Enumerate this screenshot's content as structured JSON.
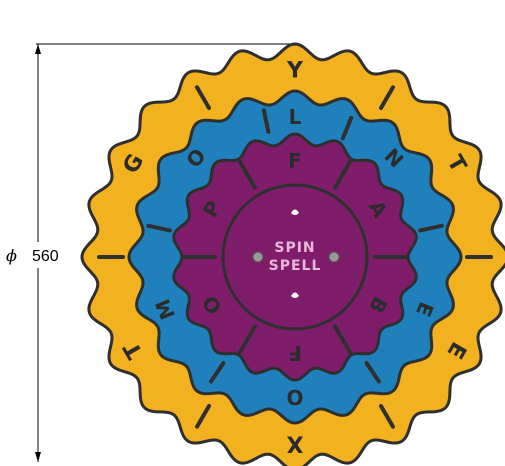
{
  "dimension": {
    "symbol": "ϕ",
    "value": "560"
  },
  "hub": {
    "line1": "SPIN",
    "line2": "SPELL"
  },
  "colors": {
    "outer": "#f2b11f",
    "middle": "#1f80bb",
    "inner": "#7f1d6b",
    "outline": "#2f2f2f",
    "hub_text": "#e9b8d8"
  },
  "rings": {
    "outer_letters": [
      {
        "char": "Y",
        "angle": 0
      },
      {
        "char": "T",
        "angle": 60
      },
      {
        "char": "E",
        "angle": 120
      },
      {
        "char": "X",
        "angle": 180
      },
      {
        "char": "T",
        "angle": 240
      },
      {
        "char": "G",
        "angle": 300
      }
    ],
    "middle_letters": [
      {
        "char": "L",
        "angle": 0
      },
      {
        "char": "N",
        "angle": 45
      },
      {
        "char": "E",
        "angle": 112
      },
      {
        "char": "O",
        "angle": 180
      },
      {
        "char": "M",
        "angle": 248
      },
      {
        "char": "O",
        "angle": 315
      }
    ],
    "inner_letters": [
      {
        "char": "F",
        "angle": 0
      },
      {
        "char": "A",
        "angle": 60
      },
      {
        "char": "B",
        "angle": 120
      },
      {
        "char": "F",
        "angle": 180
      },
      {
        "char": "O",
        "angle": 240
      },
      {
        "char": "P",
        "angle": 300
      }
    ]
  }
}
